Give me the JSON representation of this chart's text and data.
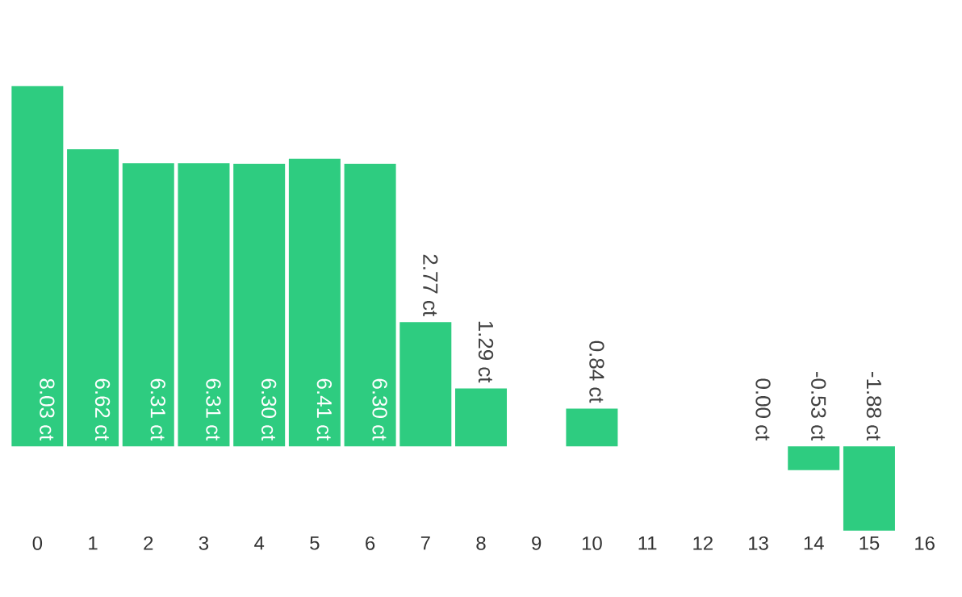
{
  "chart_data": {
    "type": "bar",
    "categories": [
      "0",
      "1",
      "2",
      "3",
      "4",
      "5",
      "6",
      "7",
      "8",
      "9",
      "10",
      "11",
      "12",
      "13",
      "14",
      "15",
      "16"
    ],
    "values": [
      8.03,
      6.62,
      6.31,
      6.31,
      6.3,
      6.41,
      6.3,
      2.77,
      1.29,
      null,
      0.84,
      null,
      null,
      0.0,
      -0.53,
      -1.88,
      null
    ],
    "value_labels": [
      "8.03 ct",
      "6.62 ct",
      "6.31 ct",
      "6.31 ct",
      "6.30 ct",
      "6.41 ct",
      "6.30 ct",
      "2.77 ct",
      "1.29 ct",
      null,
      "0.84 ct",
      null,
      null,
      "0.00 ct",
      "-0.53 ct",
      "-1.88 ct",
      null
    ],
    "color": "#2ecc80"
  }
}
